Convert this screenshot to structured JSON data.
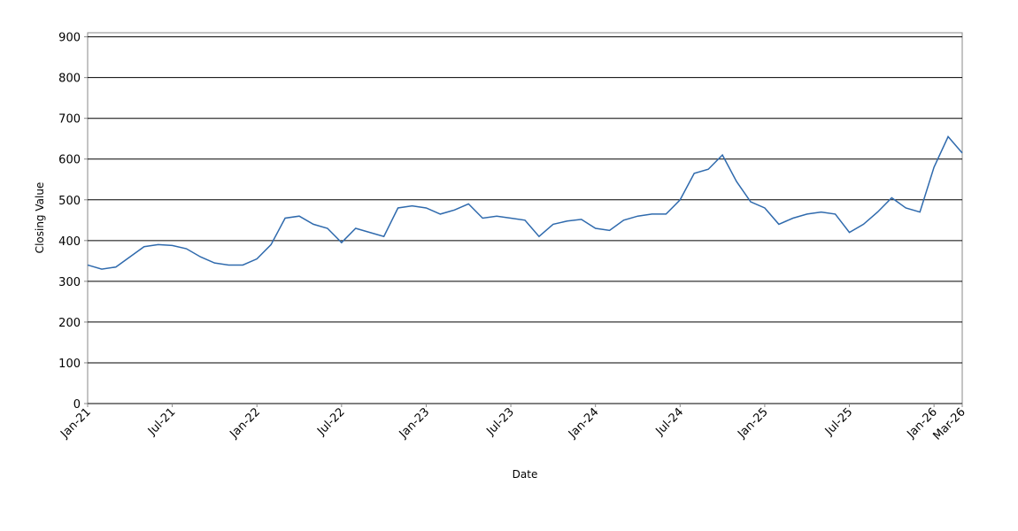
{
  "chart_data": {
    "type": "line",
    "x_label": "Date",
    "y_label": "Closing Value",
    "x": [
      "2021-01",
      "2021-02",
      "2021-03",
      "2021-04",
      "2021-05",
      "2021-06",
      "2021-07",
      "2021-08",
      "2021-09",
      "2021-10",
      "2021-11",
      "2021-12",
      "2022-01",
      "2022-02",
      "2022-03",
      "2022-04",
      "2022-05",
      "2022-06",
      "2022-07",
      "2022-08",
      "2022-09",
      "2022-10",
      "2022-11",
      "2022-12",
      "2023-01",
      "2023-02",
      "2023-03",
      "2023-04",
      "2023-05",
      "2023-06",
      "2023-07",
      "2023-08",
      "2023-09",
      "2023-10",
      "2023-11",
      "2023-12",
      "2024-01",
      "2024-02",
      "2024-03",
      "2024-04",
      "2024-05",
      "2024-06",
      "2024-07",
      "2024-08",
      "2024-09",
      "2024-10",
      "2024-11",
      "2024-12",
      "2025-01",
      "2025-02",
      "2025-03",
      "2025-04",
      "2025-05",
      "2025-06",
      "2025-07",
      "2025-08",
      "2025-09",
      "2025-10",
      "2025-11",
      "2025-12",
      "2026-01",
      "2026-02",
      "2026-03"
    ],
    "series": [
      {
        "name": "Closing Value",
        "color": "#2f6aad",
        "values": [
          340,
          330,
          335,
          360,
          385,
          390,
          388,
          380,
          360,
          345,
          340,
          340,
          355,
          390,
          455,
          460,
          440,
          430,
          395,
          430,
          420,
          410,
          480,
          485,
          480,
          465,
          475,
          490,
          455,
          460,
          455,
          450,
          410,
          440,
          448,
          452,
          430,
          425,
          450,
          460,
          465,
          465,
          500,
          565,
          575,
          610,
          545,
          495,
          480,
          440,
          455,
          465,
          470,
          465,
          420,
          440,
          470,
          505,
          480,
          470,
          580,
          655,
          615
        ]
      }
    ],
    "xlim": [
      "2021-01",
      "2026-03"
    ],
    "xticks": [
      {
        "value": "2021-01",
        "label": "Jan-21"
      },
      {
        "value": "2021-07",
        "label": "Jul-21"
      },
      {
        "value": "2022-01",
        "label": "Jan-22"
      },
      {
        "value": "2022-07",
        "label": "Jul-22"
      },
      {
        "value": "2023-01",
        "label": "Jan-23"
      },
      {
        "value": "2023-07",
        "label": "Jul-23"
      },
      {
        "value": "2024-01",
        "label": "Jan-24"
      },
      {
        "value": "2024-07",
        "label": "Jul-24"
      },
      {
        "value": "2025-01",
        "label": "Jan-25"
      },
      {
        "value": "2025-07",
        "label": "Jul-25"
      },
      {
        "value": "2026-01",
        "label": "Jan-26"
      },
      {
        "value": "2026-03",
        "label": "Mar-26"
      }
    ],
    "ylim": [
      0,
      910
    ],
    "yticks": [
      0,
      100,
      200,
      300,
      400,
      500,
      600,
      700,
      800,
      900
    ],
    "grid": true
  }
}
